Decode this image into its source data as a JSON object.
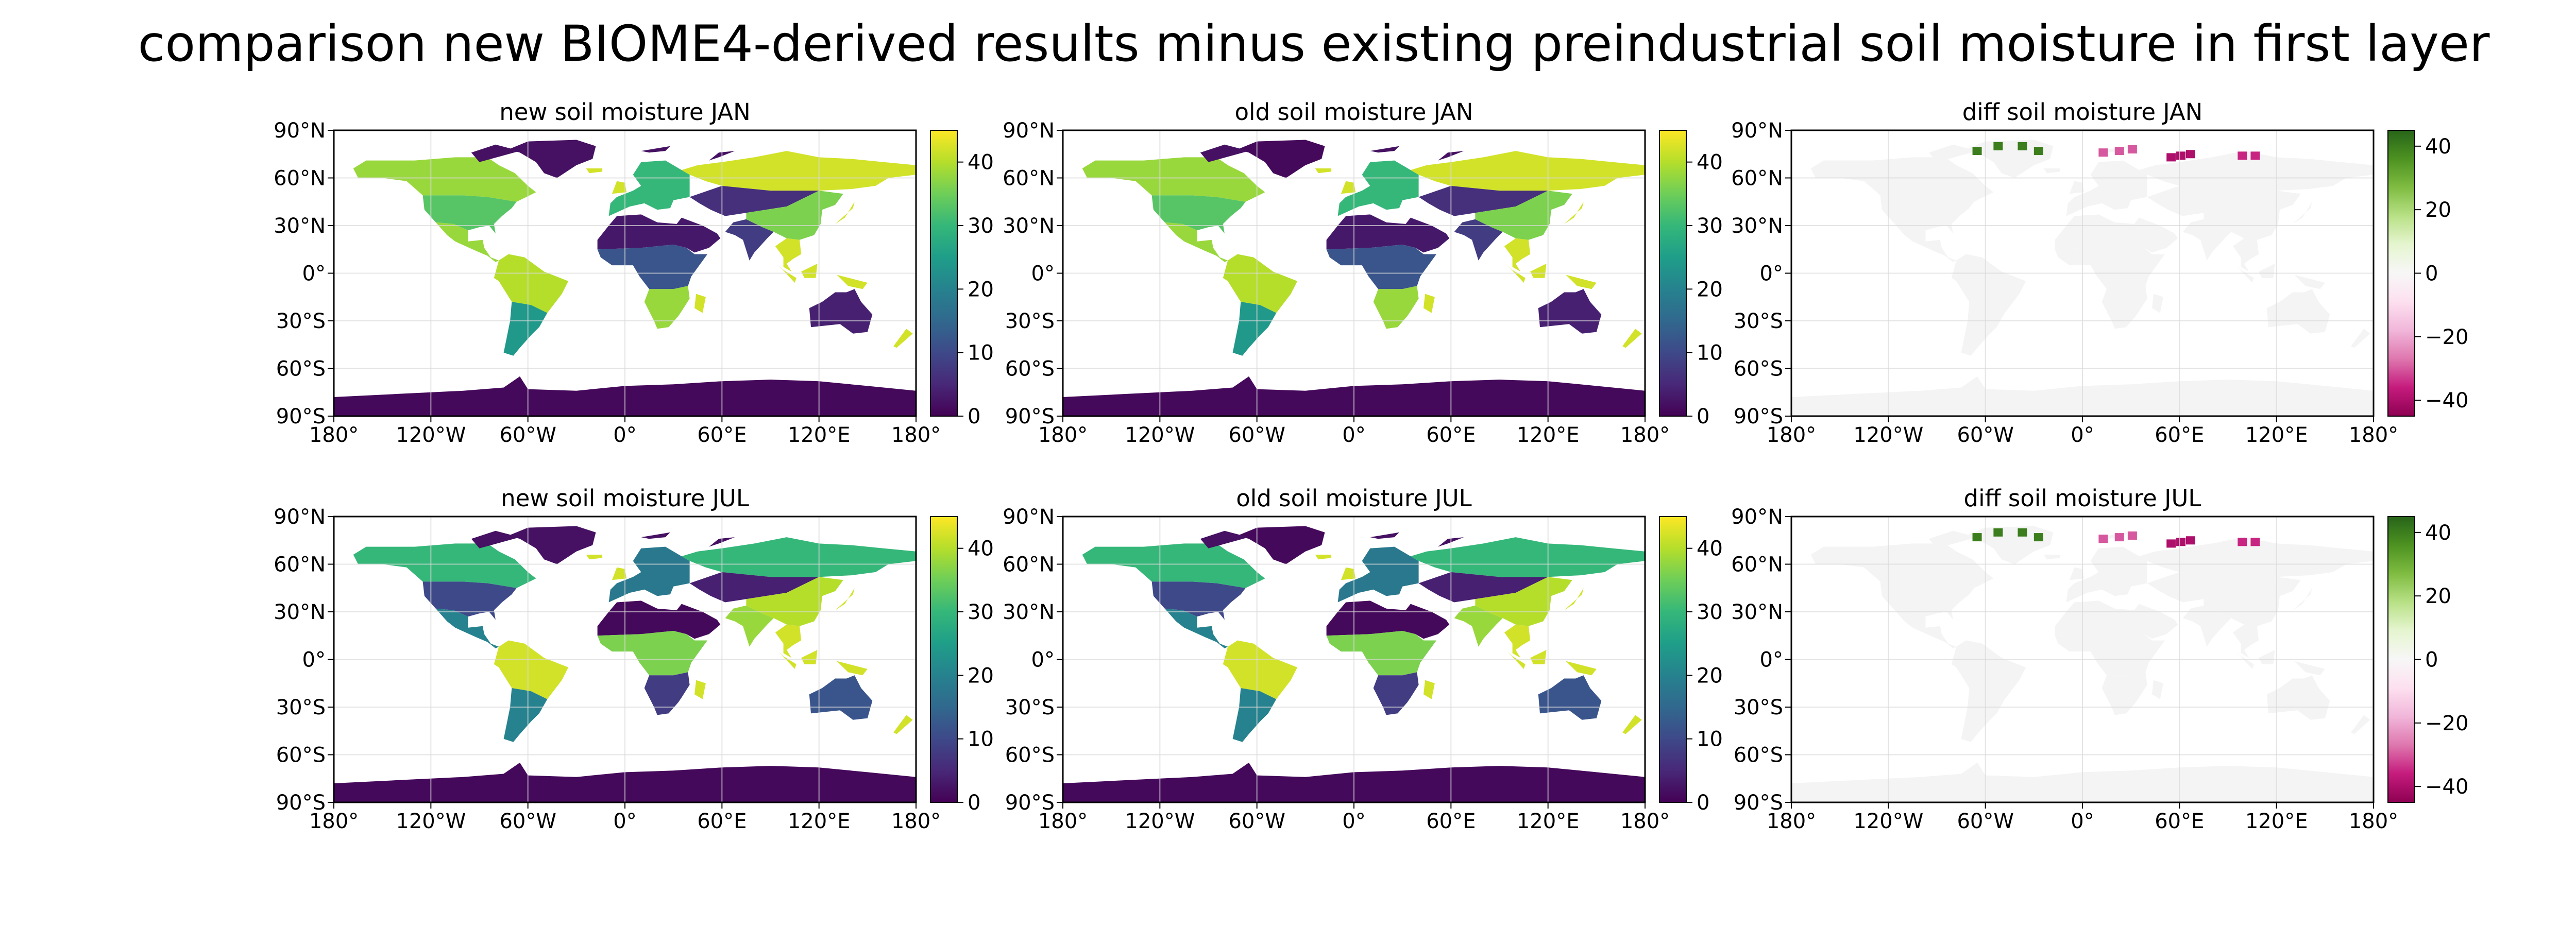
{
  "figure": {
    "suptitle": "comparison new BIOME4-derived results minus existing preindustrial soil moisture in first layer"
  },
  "colors": {
    "ocean": "#ffffff",
    "diff_land": "#f4f4f4",
    "gridline": "#d9d9d9",
    "viridis": [
      "#440154",
      "#482878",
      "#3e4989",
      "#31688e",
      "#26828e",
      "#1f9e89",
      "#35b779",
      "#6ece58",
      "#b5de2b",
      "#fde725"
    ],
    "piyg": [
      "#8e0152",
      "#c51b7d",
      "#de77ae",
      "#f1b6da",
      "#fde0ef",
      "#f7f7f7",
      "#e6f5d0",
      "#b8e186",
      "#7fbc41",
      "#4d9221",
      "#276419"
    ]
  },
  "chart_data": [
    {
      "type": "heatmap",
      "title": "new soil moisture JAN",
      "field": "soil_moisture_first_layer",
      "month": "JAN",
      "dataset": "new",
      "colormap": "viridis",
      "colorbar": {
        "range": [
          0,
          45
        ],
        "ticks": [
          0,
          10,
          20,
          30,
          40
        ]
      },
      "xlim": [
        -180,
        180
      ],
      "ylim": [
        -90,
        90
      ],
      "xticks": [
        "180°",
        "120°W",
        "60°W",
        "0°",
        "60°E",
        "120°E",
        "180°"
      ],
      "yticks": [
        "90°N",
        "60°N",
        "30°N",
        "0°",
        "30°S",
        "60°S",
        "90°S"
      ],
      "grid": true,
      "regions": [
        {
          "region": "Antarctica",
          "value": 1
        },
        {
          "region": "Greenland",
          "value": 2
        },
        {
          "region": "Alaska/Canada",
          "value": 38
        },
        {
          "region": "USA",
          "value": 33
        },
        {
          "region": "Central America",
          "value": 38
        },
        {
          "region": "Amazon",
          "value": 40
        },
        {
          "region": "Southern South America",
          "value": 24
        },
        {
          "region": "Sahara/Arabia",
          "value": 3
        },
        {
          "region": "West/Central Africa",
          "value": 12
        },
        {
          "region": "Southern Africa",
          "value": 38
        },
        {
          "region": "Europe",
          "value": 30
        },
        {
          "region": "Siberia",
          "value": 42
        },
        {
          "region": "Central Asia",
          "value": 6
        },
        {
          "region": "India",
          "value": 8
        },
        {
          "region": "East Asia",
          "value": 36
        },
        {
          "region": "Southeast Asia",
          "value": 42
        },
        {
          "region": "Australia",
          "value": 4
        }
      ]
    },
    {
      "type": "heatmap",
      "title": "old soil moisture JAN",
      "field": "soil_moisture_first_layer",
      "month": "JAN",
      "dataset": "old",
      "colormap": "viridis",
      "colorbar": {
        "range": [
          0,
          45
        ],
        "ticks": [
          0,
          10,
          20,
          30,
          40
        ]
      },
      "xlim": [
        -180,
        180
      ],
      "ylim": [
        -90,
        90
      ],
      "xticks": [
        "180°",
        "120°W",
        "60°W",
        "0°",
        "60°E",
        "120°E",
        "180°"
      ],
      "yticks": [
        "90°N",
        "60°N",
        "30°N",
        "0°",
        "30°S",
        "60°S",
        "90°S"
      ],
      "grid": true,
      "regions": [
        {
          "region": "Antarctica",
          "value": 1
        },
        {
          "region": "Greenland",
          "value": 1
        },
        {
          "region": "Alaska/Canada",
          "value": 38
        },
        {
          "region": "USA",
          "value": 33
        },
        {
          "region": "Central America",
          "value": 38
        },
        {
          "region": "Amazon",
          "value": 40
        },
        {
          "region": "Southern South America",
          "value": 24
        },
        {
          "region": "Sahara/Arabia",
          "value": 3
        },
        {
          "region": "West/Central Africa",
          "value": 12
        },
        {
          "region": "Southern Africa",
          "value": 38
        },
        {
          "region": "Europe",
          "value": 30
        },
        {
          "region": "Siberia",
          "value": 42
        },
        {
          "region": "Central Asia",
          "value": 6
        },
        {
          "region": "India",
          "value": 8
        },
        {
          "region": "East Asia",
          "value": 36
        },
        {
          "region": "Southeast Asia",
          "value": 42
        },
        {
          "region": "Australia",
          "value": 4
        }
      ]
    },
    {
      "type": "heatmap",
      "title": "diff soil moisture JAN",
      "field": "soil_moisture_first_layer",
      "month": "JAN",
      "dataset": "diff",
      "colormap": "PiYG",
      "colorbar": {
        "range": [
          -45,
          45
        ],
        "ticks": [
          -40,
          -20,
          0,
          20,
          40
        ]
      },
      "xlim": [
        -180,
        180
      ],
      "ylim": [
        -90,
        90
      ],
      "xticks": [
        "180°",
        "120°W",
        "60°W",
        "0°",
        "60°E",
        "120°E",
        "180°"
      ],
      "yticks": [
        "90°N",
        "60°N",
        "30°N",
        "0°",
        "30°S",
        "60°S",
        "90°S"
      ],
      "grid": true,
      "regions": [
        {
          "region": "most land areas",
          "value": 0
        },
        {
          "region": "Greenland coast",
          "value": 40
        },
        {
          "region": "Svalbard",
          "value": -30
        },
        {
          "region": "Novaya Zemlya",
          "value": -40
        },
        {
          "region": "Taymyr",
          "value": -35
        }
      ]
    },
    {
      "type": "heatmap",
      "title": "new soil moisture JUL",
      "field": "soil_moisture_first_layer",
      "month": "JUL",
      "dataset": "new",
      "colormap": "viridis",
      "colorbar": {
        "range": [
          0,
          45
        ],
        "ticks": [
          0,
          10,
          20,
          30,
          40
        ]
      },
      "xlim": [
        -180,
        180
      ],
      "ylim": [
        -90,
        90
      ],
      "xticks": [
        "180°",
        "120°W",
        "60°W",
        "0°",
        "60°E",
        "120°E",
        "180°"
      ],
      "yticks": [
        "90°N",
        "60°N",
        "30°N",
        "0°",
        "30°S",
        "60°S",
        "90°S"
      ],
      "grid": true,
      "regions": [
        {
          "region": "Antarctica",
          "value": 1
        },
        {
          "region": "Greenland",
          "value": 2
        },
        {
          "region": "Alaska/Canada",
          "value": 30
        },
        {
          "region": "USA",
          "value": 10
        },
        {
          "region": "Central America",
          "value": 20
        },
        {
          "region": "Amazon",
          "value": 42
        },
        {
          "region": "Southern South America",
          "value": 20
        },
        {
          "region": "Sahara/Arabia",
          "value": 1
        },
        {
          "region": "West/Central Africa",
          "value": 36
        },
        {
          "region": "Southern Africa",
          "value": 8
        },
        {
          "region": "Europe",
          "value": 18
        },
        {
          "region": "Siberia",
          "value": 30
        },
        {
          "region": "Central Asia",
          "value": 4
        },
        {
          "region": "India",
          "value": 38
        },
        {
          "region": "East Asia",
          "value": 40
        },
        {
          "region": "Southeast Asia",
          "value": 42
        },
        {
          "region": "Australia",
          "value": 12
        }
      ]
    },
    {
      "type": "heatmap",
      "title": "old soil moisture JUL",
      "field": "soil_moisture_first_layer",
      "month": "JUL",
      "dataset": "old",
      "colormap": "viridis",
      "colorbar": {
        "range": [
          0,
          45
        ],
        "ticks": [
          0,
          10,
          20,
          30,
          40
        ]
      },
      "xlim": [
        -180,
        180
      ],
      "ylim": [
        -90,
        90
      ],
      "xticks": [
        "180°",
        "120°W",
        "60°W",
        "0°",
        "60°E",
        "120°E",
        "180°"
      ],
      "yticks": [
        "90°N",
        "60°N",
        "30°N",
        "0°",
        "30°S",
        "60°S",
        "90°S"
      ],
      "grid": true,
      "regions": [
        {
          "region": "Antarctica",
          "value": 1
        },
        {
          "region": "Greenland",
          "value": 1
        },
        {
          "region": "Alaska/Canada",
          "value": 30
        },
        {
          "region": "USA",
          "value": 10
        },
        {
          "region": "Central America",
          "value": 20
        },
        {
          "region": "Amazon",
          "value": 42
        },
        {
          "region": "Southern South America",
          "value": 20
        },
        {
          "region": "Sahara/Arabia",
          "value": 1
        },
        {
          "region": "West/Central Africa",
          "value": 36
        },
        {
          "region": "Southern Africa",
          "value": 8
        },
        {
          "region": "Europe",
          "value": 18
        },
        {
          "region": "Siberia",
          "value": 30
        },
        {
          "region": "Central Asia",
          "value": 4
        },
        {
          "region": "India",
          "value": 38
        },
        {
          "region": "East Asia",
          "value": 40
        },
        {
          "region": "Southeast Asia",
          "value": 42
        },
        {
          "region": "Australia",
          "value": 12
        }
      ]
    },
    {
      "type": "heatmap",
      "title": "diff soil moisture JUL",
      "field": "soil_moisture_first_layer",
      "month": "JUL",
      "dataset": "diff",
      "colormap": "PiYG",
      "colorbar": {
        "range": [
          -45,
          45
        ],
        "ticks": [
          -40,
          -20,
          0,
          20,
          40
        ]
      },
      "xlim": [
        -180,
        180
      ],
      "ylim": [
        -90,
        90
      ],
      "xticks": [
        "180°",
        "120°W",
        "60°W",
        "0°",
        "60°E",
        "120°E",
        "180°"
      ],
      "yticks": [
        "90°N",
        "60°N",
        "30°N",
        "0°",
        "30°S",
        "60°S",
        "90°S"
      ],
      "grid": true,
      "regions": [
        {
          "region": "most land areas",
          "value": 0
        },
        {
          "region": "Greenland coast",
          "value": 40
        },
        {
          "region": "Svalbard",
          "value": -30
        },
        {
          "region": "Novaya Zemlya",
          "value": -40
        },
        {
          "region": "Taymyr",
          "value": -35
        }
      ]
    }
  ]
}
